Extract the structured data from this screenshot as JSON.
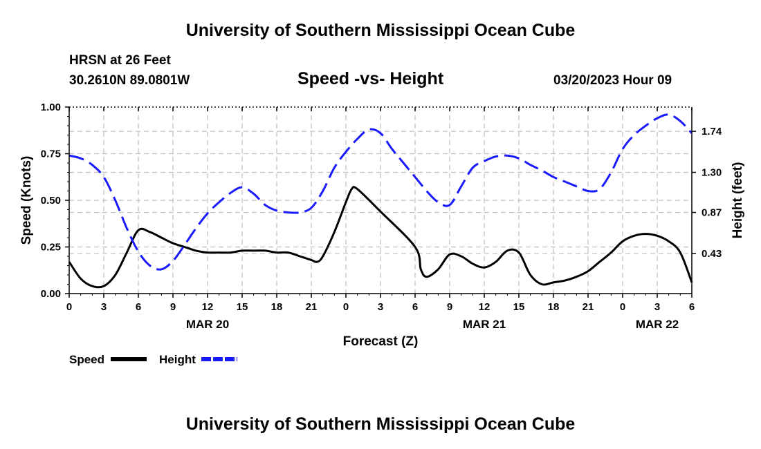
{
  "header": {
    "title": "University of Southern Mississippi Ocean Cube",
    "station": "HRSN at 26 Feet",
    "coords": "30.2610N  89.0801W",
    "subtitle": "Speed -vs- Height",
    "datetime": "03/20/2023 Hour 09"
  },
  "footer": {
    "title": "University of Southern Mississippi Ocean Cube"
  },
  "chart_data": {
    "type": "line",
    "title": "Speed -vs- Height",
    "xlabel": "Forecast (Z)",
    "ylabel": "Speed (Knots)",
    "y2label": "Height (feet)",
    "x_range": [
      0,
      54
    ],
    "x_ticks": [
      0,
      3,
      6,
      9,
      12,
      15,
      18,
      21,
      24,
      27,
      30,
      33,
      36,
      39,
      42,
      45,
      48,
      51,
      54
    ],
    "x_tick_labels": [
      "0",
      "3",
      "6",
      "9",
      "12",
      "15",
      "18",
      "21",
      "0",
      "3",
      "6",
      "9",
      "12",
      "15",
      "18",
      "21",
      "0",
      "3",
      "6"
    ],
    "date_labels": [
      {
        "hour": 12,
        "text": "MAR 20"
      },
      {
        "hour": 36,
        "text": "MAR 21"
      },
      {
        "hour": 51,
        "text": "MAR 22"
      }
    ],
    "ylim": [
      0,
      1
    ],
    "y_ticks": [
      0,
      0.25,
      0.5,
      0.75,
      1.0
    ],
    "y_tick_labels": [
      "0.00",
      "0.25",
      "0.50",
      "0.75",
      "1.00"
    ],
    "y2lim": [
      0,
      2.0
    ],
    "y2_ticks": [
      0.43,
      0.87,
      1.3,
      1.74
    ],
    "y2_tick_labels": [
      "0.43",
      "0.87",
      "1.30",
      "1.74"
    ],
    "grid": true,
    "series": [
      {
        "name": "Speed",
        "axis": "left",
        "color": "#000000",
        "dash": "solid",
        "x": [
          0,
          1,
          2,
          3,
          4,
          5,
          6,
          7,
          8,
          9,
          10,
          11,
          12,
          13,
          14,
          15,
          16,
          17,
          18,
          19,
          20,
          21,
          21.5,
          22,
          23,
          24,
          24.5,
          25,
          27,
          30,
          30.5,
          31,
          32,
          33,
          34,
          35,
          36,
          37,
          38,
          39,
          40,
          41,
          42,
          43,
          44,
          45,
          46,
          47,
          48,
          49,
          50,
          51,
          52,
          53,
          54
        ],
        "values": [
          0.17,
          0.08,
          0.04,
          0.04,
          0.1,
          0.22,
          0.34,
          0.33,
          0.3,
          0.27,
          0.25,
          0.23,
          0.22,
          0.22,
          0.22,
          0.23,
          0.23,
          0.23,
          0.22,
          0.22,
          0.2,
          0.18,
          0.17,
          0.2,
          0.33,
          0.49,
          0.56,
          0.56,
          0.44,
          0.25,
          0.13,
          0.09,
          0.13,
          0.21,
          0.2,
          0.16,
          0.14,
          0.17,
          0.23,
          0.22,
          0.1,
          0.05,
          0.06,
          0.07,
          0.09,
          0.12,
          0.17,
          0.22,
          0.28,
          0.31,
          0.32,
          0.31,
          0.28,
          0.22,
          0.06
        ]
      },
      {
        "name": "Height",
        "axis": "right",
        "color": "#1a1aff",
        "dash": "dashed",
        "x": [
          0,
          1,
          2,
          3,
          4,
          5,
          6,
          7,
          8,
          9,
          10,
          11,
          12,
          13,
          14,
          15,
          16,
          17,
          18,
          19,
          20,
          21,
          22,
          23,
          24,
          25,
          26,
          27,
          28,
          29,
          30,
          31,
          32,
          33,
          34,
          35,
          36,
          37,
          38,
          39,
          40,
          41,
          42,
          43,
          44,
          45,
          46,
          47,
          48,
          49,
          50,
          51,
          52,
          53,
          54
        ],
        "values": [
          1.48,
          1.45,
          1.38,
          1.25,
          1.0,
          0.7,
          0.45,
          0.3,
          0.26,
          0.35,
          0.52,
          0.7,
          0.86,
          0.98,
          1.08,
          1.14,
          1.07,
          0.95,
          0.89,
          0.87,
          0.87,
          0.92,
          1.1,
          1.35,
          1.52,
          1.66,
          1.76,
          1.72,
          1.55,
          1.4,
          1.25,
          1.1,
          0.98,
          0.95,
          1.15,
          1.35,
          1.42,
          1.47,
          1.48,
          1.45,
          1.38,
          1.32,
          1.25,
          1.2,
          1.15,
          1.1,
          1.12,
          1.3,
          1.55,
          1.7,
          1.8,
          1.88,
          1.92,
          1.85,
          1.72
        ]
      }
    ],
    "legend": [
      {
        "label": "Speed",
        "color": "#000000",
        "dash": "solid"
      },
      {
        "label": "Height",
        "color": "#1a1aff",
        "dash": "dashed"
      }
    ]
  }
}
